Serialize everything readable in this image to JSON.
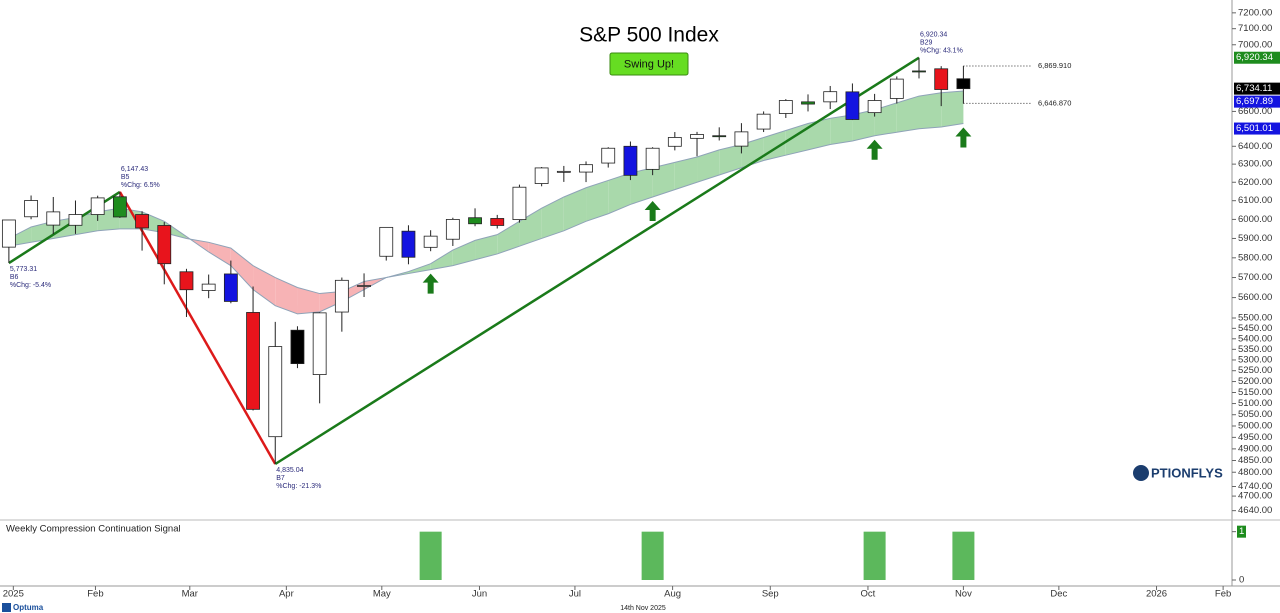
{
  "chart_data": {
    "type": "candlestick",
    "title": "S&P 500 Index",
    "badge": "Swing Up!",
    "log_scale": true,
    "x": [
      0,
      1,
      2,
      3,
      4,
      5,
      6,
      7,
      8,
      9,
      10,
      11,
      12,
      13,
      14,
      15,
      16,
      17,
      18,
      19,
      20,
      21,
      22,
      23,
      24,
      25,
      26,
      27,
      28,
      29,
      30,
      31,
      32,
      33,
      34,
      35,
      36,
      37,
      38,
      39,
      40,
      41,
      42,
      43
    ],
    "open": [
      5855,
      6014,
      5970,
      5969,
      6026,
      6121,
      6026,
      5968,
      5729,
      5635,
      5718,
      5527,
      4953,
      5441,
      5232,
      5529,
      5655,
      5808,
      5938,
      5854,
      5896,
      6009,
      6005,
      5999,
      6193,
      6260,
      6256,
      6306,
      6400,
      6271,
      6400,
      6445,
      6457,
      6401,
      6498,
      6588,
      6656,
      6656,
      6715,
      6593,
      6676,
      6838,
      6853,
      6793
    ],
    "high": [
      5997,
      6128,
      6120,
      6101,
      6127,
      6147.43,
      6043,
      5986,
      5744,
      5715,
      5786,
      5655,
      5481,
      5460,
      5528,
      5700,
      5721,
      5959,
      5969,
      5943,
      6009,
      6059,
      6024,
      6187,
      6284,
      6290,
      6315,
      6395,
      6427,
      6395,
      6481,
      6482,
      6508,
      6532,
      6600,
      6672,
      6700,
      6750,
      6765,
      6703,
      6807,
      6920.34,
      6869,
      6870
    ],
    "low": [
      5773.31,
      6001,
      5923,
      5924,
      5992,
      6008,
      5837,
      5666,
      5505,
      5597,
      5572,
      5069,
      4835.04,
      5262,
      5101,
      5434,
      5603,
      5786,
      5767,
      5834,
      5861,
      5964,
      5952,
      5983,
      6178,
      6202,
      6201,
      6281,
      6212,
      6239,
      6377,
      6344,
      6433,
      6360,
      6481,
      6562,
      6600,
      6614,
      6550,
      6570,
      6646,
      6795,
      6631,
      6646
    ],
    "close": [
      5997,
      6101,
      6040,
      6026,
      6115,
      6013,
      5955,
      5770,
      5639,
      5667,
      5581,
      5074,
      5363,
      5283,
      5525,
      5686,
      5660,
      5958,
      5803,
      5912,
      6000,
      5977,
      5968,
      6173,
      6279,
      6260,
      6297,
      6389,
      6238,
      6389,
      6450,
      6467,
      6460,
      6482,
      6584,
      6664,
      6643,
      6716,
      6553,
      6664,
      6791,
      6840,
      6729,
      6734
    ],
    "colors": [
      "#ffffff",
      "#ffffff",
      "#ffffff",
      "#ffffff",
      "#ffffff",
      "#1e8c1e",
      "#e8141c",
      "#e8141c",
      "#e8141c",
      "#ffffff",
      "#1414e0",
      "#e8141c",
      "#ffffff",
      "#000000",
      "#ffffff",
      "#ffffff",
      "#ffffff",
      "#ffffff",
      "#1414e0",
      "#ffffff",
      "#ffffff",
      "#1e8c1e",
      "#e8141c",
      "#ffffff",
      "#ffffff",
      "#ffffff",
      "#ffffff",
      "#ffffff",
      "#1414e0",
      "#ffffff",
      "#ffffff",
      "#ffffff",
      "#1e8c1e",
      "#ffffff",
      "#ffffff",
      "#ffffff",
      "#1e8c1e",
      "#ffffff",
      "#1414e0",
      "#ffffff",
      "#ffffff",
      "#1e8c1e",
      "#e8141c",
      "#000000"
    ],
    "cloud": {
      "fast": [
        5900,
        5960,
        5990,
        6010,
        6040,
        6060,
        6040,
        5990,
        5910,
        5830,
        5760,
        5640,
        5560,
        5520,
        5530,
        5580,
        5640,
        5700,
        5730,
        5770,
        5840,
        5890,
        5920,
        5990,
        6060,
        6120,
        6170,
        6210,
        6250,
        6280,
        6310,
        6340,
        6380,
        6410,
        6450,
        6490,
        6530,
        6560,
        6580,
        6610,
        6650,
        6690,
        6710,
        6720
      ],
      "slow": [
        5860,
        5880,
        5900,
        5920,
        5940,
        5950,
        5950,
        5930,
        5900,
        5880,
        5850,
        5760,
        5700,
        5650,
        5620,
        5630,
        5680,
        5700,
        5720,
        5740,
        5760,
        5790,
        5820,
        5860,
        5900,
        5940,
        5990,
        6030,
        6080,
        6120,
        6160,
        6200,
        6240,
        6280,
        6320,
        6350,
        6380,
        6410,
        6430,
        6460,
        6480,
        6500,
        6510,
        6530
      ],
      "up_color": "#a9d9ab",
      "down_color": "#f7b3b5",
      "edge_color": "#8fa3b8"
    },
    "zigzag": [
      {
        "x": 0,
        "value": 5773.31,
        "label": "5,773.31",
        "bars": "B6",
        "change": "%Chg: -5.4%"
      },
      {
        "x": 5,
        "value": 6147.43,
        "label": "6,147.43",
        "bars": "B5",
        "change": "%Chg: 6.5%"
      },
      {
        "x": 12,
        "value": 4835.04,
        "label": "4,835.04",
        "bars": "B7",
        "change": "%Chg: -21.3%"
      },
      {
        "x": 41,
        "value": 6920.34,
        "label": "6,920.34",
        "bars": "B29",
        "change": "%Chg: 43.1%"
      }
    ],
    "up_color": "#1a7a1a",
    "down_color": "#dd1a1a",
    "arrows_x": [
      19,
      29,
      39,
      43
    ],
    "levels": [
      {
        "value": 6869.91,
        "label": "6,869.910"
      },
      {
        "value": 6646.87,
        "label": "6,646.870"
      }
    ],
    "price_labels": [
      {
        "value": 6920.34,
        "label": "6,920.34",
        "color": "#1e8c1e"
      },
      {
        "value": 6734.11,
        "label": "6,734.11",
        "color": "#000000"
      },
      {
        "value": 6697.89,
        "label": "6,697.89",
        "color": "#1414e0"
      },
      {
        "value": 6501.01,
        "label": "6,501.01",
        "color": "#1414e0"
      }
    ],
    "xlim": [
      -0.4,
      55.1
    ],
    "xticks": [
      {
        "value": 0.2,
        "label": "2025"
      },
      {
        "value": 3.9,
        "label": "Feb"
      },
      {
        "value": 8.15,
        "label": "Mar"
      },
      {
        "value": 12.5,
        "label": "Apr"
      },
      {
        "value": 16.8,
        "label": "May"
      },
      {
        "value": 21.2,
        "label": "Jun"
      },
      {
        "value": 25.5,
        "label": "Jul"
      },
      {
        "value": 29.9,
        "label": "Aug"
      },
      {
        "value": 34.3,
        "label": "Sep"
      },
      {
        "value": 38.7,
        "label": "Oct"
      },
      {
        "value": 43,
        "label": "Nov"
      },
      {
        "value": 47.3,
        "label": "Dec"
      },
      {
        "value": 51.7,
        "label": "2026"
      },
      {
        "value": 54.7,
        "label": "Feb"
      }
    ],
    "ylim": [
      4610,
      7250
    ],
    "yticks": [
      {
        "value": 7200,
        "label": "7200.00"
      },
      {
        "value": 7100,
        "label": "7100.00"
      },
      {
        "value": 7000,
        "label": "7000.00"
      },
      {
        "value": 6600,
        "label": "6600.00"
      },
      {
        "value": 6400,
        "label": "6400.00"
      },
      {
        "value": 6300,
        "label": "6300.00"
      },
      {
        "value": 6200,
        "label": "6200.00"
      },
      {
        "value": 6100,
        "label": "6100.00"
      },
      {
        "value": 6000,
        "label": "6000.00"
      },
      {
        "value": 5900,
        "label": "5900.00"
      },
      {
        "value": 5800,
        "label": "5800.00"
      },
      {
        "value": 5700,
        "label": "5700.00"
      },
      {
        "value": 5600,
        "label": "5600.00"
      },
      {
        "value": 5500,
        "label": "5500.00"
      },
      {
        "value": 5450,
        "label": "5450.00"
      },
      {
        "value": 5400,
        "label": "5400.00"
      },
      {
        "value": 5350,
        "label": "5350.00"
      },
      {
        "value": 5300,
        "label": "5300.00"
      },
      {
        "value": 5250,
        "label": "5250.00"
      },
      {
        "value": 5200,
        "label": "5200.00"
      },
      {
        "value": 5150,
        "label": "5150.00"
      },
      {
        "value": 5100,
        "label": "5100.00"
      },
      {
        "value": 5050,
        "label": "5050.00"
      },
      {
        "value": 5000,
        "label": "5000.00"
      },
      {
        "value": 4950,
        "label": "4950.00"
      },
      {
        "value": 4900,
        "label": "4900.00"
      },
      {
        "value": 4850,
        "label": "4850.00"
      },
      {
        "value": 4800,
        "label": "4800.00"
      },
      {
        "value": 4740,
        "label": "4740.00"
      },
      {
        "value": 4700,
        "label": "4700.00"
      },
      {
        "value": 4640,
        "label": "4640.00"
      }
    ],
    "signal": {
      "title": "Weekly Compression Continuation Signal",
      "x": [
        19,
        29,
        39,
        43
      ],
      "values": [
        1,
        1,
        1,
        1
      ],
      "color": "#5cb85c",
      "ylim": [
        0,
        1.2
      ],
      "yticks": [
        0,
        1
      ]
    },
    "footer_date": "14th Nov 2025",
    "brand": "Optuma",
    "logo": "PTIONFLYS"
  }
}
